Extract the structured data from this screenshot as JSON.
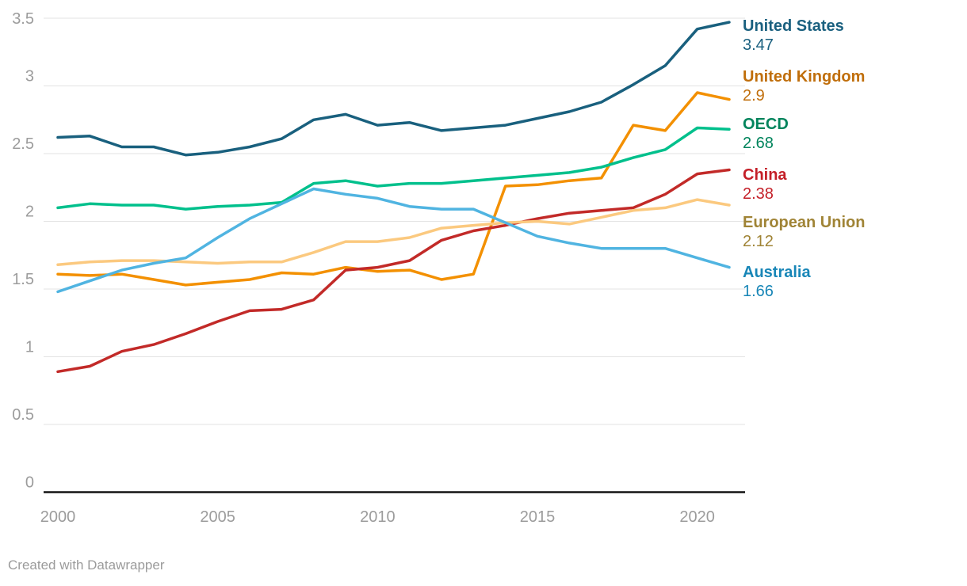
{
  "chart_data": {
    "type": "line",
    "x": [
      2000,
      2001,
      2002,
      2003,
      2004,
      2005,
      2006,
      2007,
      2008,
      2009,
      2010,
      2011,
      2012,
      2013,
      2014,
      2015,
      2016,
      2017,
      2018,
      2019,
      2020,
      2021
    ],
    "series": [
      {
        "name": "United States",
        "final_label": "3.47",
        "line_color": "#19607e",
        "label_color": "#1a607f",
        "values": [
          2.62,
          2.63,
          2.55,
          2.55,
          2.49,
          2.51,
          2.55,
          2.61,
          2.75,
          2.79,
          2.71,
          2.73,
          2.67,
          2.69,
          2.71,
          2.76,
          2.81,
          2.88,
          3.01,
          3.15,
          3.42,
          3.47
        ]
      },
      {
        "name": "United Kingdom",
        "final_label": "2.9",
        "line_color": "#f39000",
        "label_color": "#c06e0b",
        "values": [
          1.61,
          1.6,
          1.61,
          1.57,
          1.53,
          1.55,
          1.57,
          1.62,
          1.61,
          1.66,
          1.63,
          1.64,
          1.57,
          1.61,
          2.26,
          2.27,
          2.3,
          2.32,
          2.71,
          2.67,
          2.95,
          2.9
        ]
      },
      {
        "name": "OECD",
        "final_label": "2.68",
        "line_color": "#00c08c",
        "label_color": "#00845c",
        "values": [
          2.1,
          2.13,
          2.12,
          2.12,
          2.09,
          2.11,
          2.12,
          2.14,
          2.28,
          2.3,
          2.26,
          2.28,
          2.28,
          2.3,
          2.32,
          2.34,
          2.36,
          2.4,
          2.47,
          2.53,
          2.69,
          2.68
        ]
      },
      {
        "name": "China",
        "final_label": "2.38",
        "line_color": "#c22a28",
        "label_color": "#c41f28",
        "values": [
          0.89,
          0.93,
          1.04,
          1.09,
          1.17,
          1.26,
          1.34,
          1.35,
          1.42,
          1.64,
          1.66,
          1.71,
          1.86,
          1.93,
          1.97,
          2.02,
          2.06,
          2.08,
          2.1,
          2.2,
          2.35,
          2.38
        ]
      },
      {
        "name": "European Union",
        "final_label": "2.12",
        "line_color": "#fbc97f",
        "label_color": "#a08436",
        "values": [
          1.68,
          1.7,
          1.71,
          1.71,
          1.7,
          1.69,
          1.7,
          1.7,
          1.77,
          1.85,
          1.85,
          1.88,
          1.95,
          1.97,
          1.99,
          2.0,
          1.98,
          2.03,
          2.08,
          2.1,
          2.16,
          2.12
        ]
      },
      {
        "name": "Australia",
        "final_label": "1.66",
        "line_color": "#50b4e1",
        "label_color": "#1886b7",
        "values": [
          1.48,
          1.56,
          1.64,
          1.69,
          1.73,
          1.88,
          2.02,
          2.13,
          2.24,
          2.2,
          2.17,
          2.11,
          2.09,
          2.09,
          1.99,
          1.89,
          1.84,
          1.8,
          1.8,
          1.8,
          1.73,
          1.66
        ]
      }
    ],
    "ylim": [
      0,
      3.5
    ],
    "yticks": [
      0,
      0.5,
      1,
      1.5,
      2,
      2.5,
      3,
      3.5
    ],
    "ytick_labels": [
      "0",
      "0.5",
      "1",
      "1.5",
      "2",
      "2.5",
      "3",
      "3.5"
    ],
    "xticks": [
      2000,
      2005,
      2010,
      2015,
      2020
    ],
    "xtick_labels": [
      "2000",
      "2005",
      "2010",
      "2015",
      "2020"
    ],
    "grid": true,
    "legend_position": "right"
  },
  "footer": {
    "credit": "Created with Datawrapper"
  },
  "colors": {
    "background": "#ffffff",
    "gridline": "#e3e3e3",
    "axis_line": "#141414",
    "tick_label": "#9c9c9c",
    "credit_text": "#9b9b9b"
  }
}
